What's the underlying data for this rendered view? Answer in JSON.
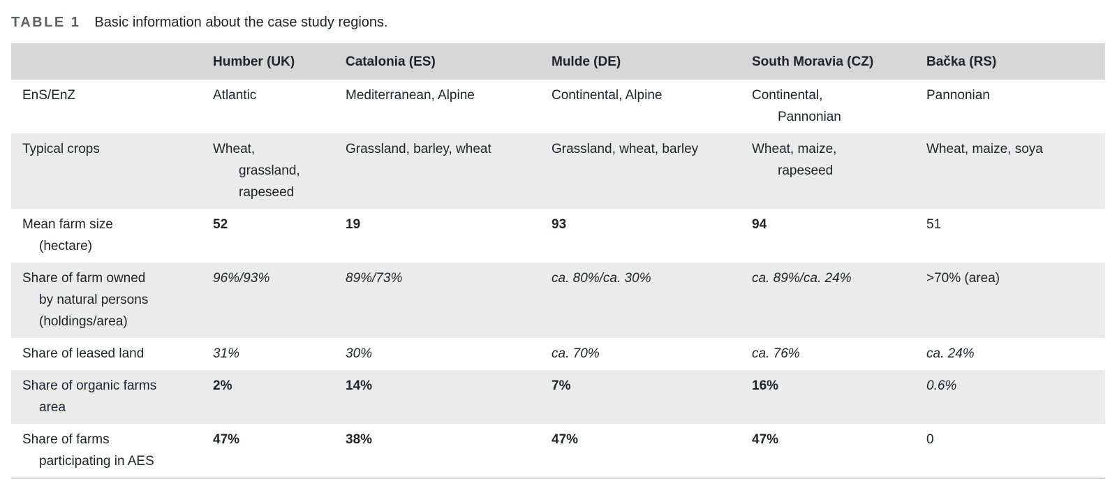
{
  "page": {
    "table_label": "TABLE 1",
    "caption": "Basic information about the case study regions."
  },
  "colors": {
    "header_bg": "#d7d7d7",
    "stripe_bg": "#ebebeb",
    "text": "#21242b",
    "label_gray": "#5d6065",
    "bottom_border": "#cfcfcf"
  },
  "table": {
    "columns": [
      "",
      "Humber (UK)",
      "Catalonia (ES)",
      "Mulde (DE)",
      "South Moravia (CZ)",
      "Bačka (RS)"
    ],
    "rows": [
      {
        "label": "EnS/EnZ",
        "cells": [
          {
            "text": "Atlantic",
            "style": "regular"
          },
          {
            "text": "Mediterranean, Alpine",
            "style": "regular"
          },
          {
            "text": "Continental, Alpine",
            "style": "regular"
          },
          {
            "text": "Continental,\nPannonian",
            "style": "regular"
          },
          {
            "text": "Pannonian",
            "style": "regular"
          }
        ]
      },
      {
        "label": "Typical crops",
        "cells": [
          {
            "text": "Wheat,\ngrassland,\nrapeseed",
            "style": "regular"
          },
          {
            "text": "Grassland, barley, wheat",
            "style": "regular"
          },
          {
            "text": "Grassland, wheat, barley",
            "style": "regular"
          },
          {
            "text": "Wheat, maize,\nrapeseed",
            "style": "regular"
          },
          {
            "text": "Wheat, maize, soya",
            "style": "regular"
          }
        ]
      },
      {
        "label": "Mean farm size\n(hectare)",
        "cells": [
          {
            "text": "52",
            "style": "bold"
          },
          {
            "text": "19",
            "style": "bold"
          },
          {
            "text": "93",
            "style": "bold"
          },
          {
            "text": "94",
            "style": "bold"
          },
          {
            "text": "51",
            "style": "regular"
          }
        ]
      },
      {
        "label": "Share of farm owned\nby natural persons\n(holdings/area)",
        "cells": [
          {
            "text": "96%/93%",
            "style": "italic"
          },
          {
            "text": "89%/73%",
            "style": "italic"
          },
          {
            "text": "ca. 80%/ca. 30%",
            "style": "italic"
          },
          {
            "text": "ca. 89%/ca. 24%",
            "style": "italic"
          },
          {
            "text": ">70% (area)",
            "style": "regular"
          }
        ]
      },
      {
        "label": "Share of leased land",
        "cells": [
          {
            "text": "31%",
            "style": "italic"
          },
          {
            "text": "30%",
            "style": "italic"
          },
          {
            "text": "ca. 70%",
            "style": "italic"
          },
          {
            "text": "ca. 76%",
            "style": "italic"
          },
          {
            "text": "ca. 24%",
            "style": "italic"
          }
        ]
      },
      {
        "label": "Share of organic farms\narea",
        "cells": [
          {
            "text": "2%",
            "style": "bold"
          },
          {
            "text": "14%",
            "style": "bold"
          },
          {
            "text": "7%",
            "style": "bold"
          },
          {
            "text": "16%",
            "style": "bold"
          },
          {
            "text": "0.6%",
            "style": "italic"
          }
        ]
      },
      {
        "label": "Share of farms\nparticipating in AES",
        "cells": [
          {
            "text": "47%",
            "style": "bold"
          },
          {
            "text": "38%",
            "style": "bold"
          },
          {
            "text": "47%",
            "style": "bold"
          },
          {
            "text": "47%",
            "style": "bold"
          },
          {
            "text": "0",
            "style": "regular"
          }
        ]
      }
    ]
  }
}
